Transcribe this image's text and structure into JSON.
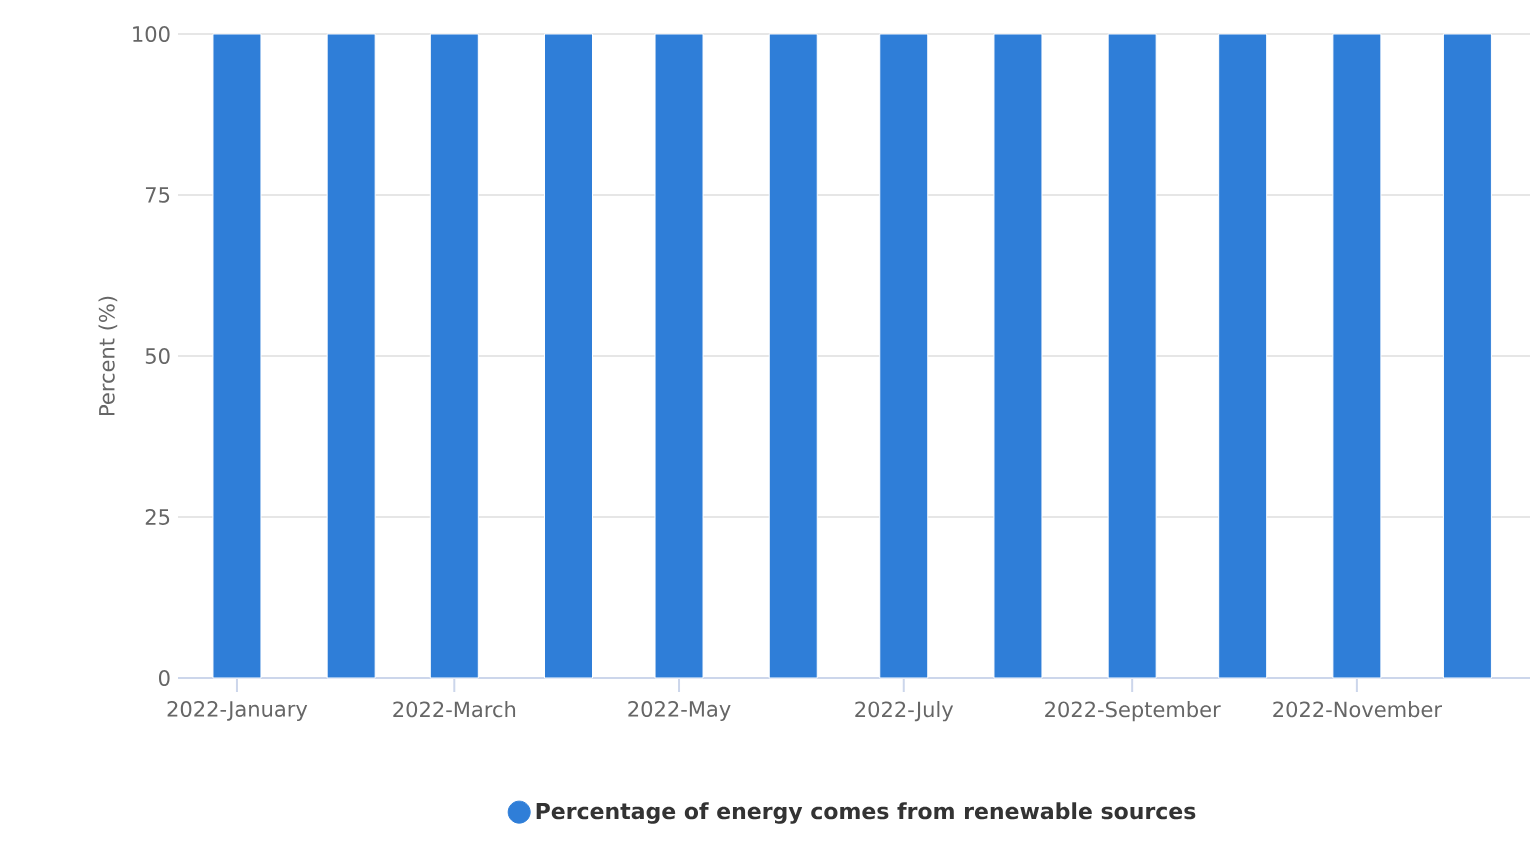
{
  "chart_data": {
    "type": "bar",
    "x": [
      "2022-01",
      "2022-02",
      "2022-03",
      "2022-04",
      "2022-05",
      "2022-06",
      "2022-07",
      "2022-08",
      "2022-09",
      "2022-10",
      "2022-11",
      "2022-12"
    ],
    "series": [
      {
        "name": "Percentage of energy comes from renewable sources",
        "color": "#2f7ed8",
        "values": [
          100,
          100,
          100,
          100,
          100,
          100,
          100,
          100,
          100,
          100,
          100,
          100
        ]
      }
    ],
    "ylabel": "Percent (%)",
    "ylim": [
      0,
      100
    ],
    "yticks": [
      0,
      25,
      50,
      75,
      100
    ],
    "xlim": [
      "2021-12-16",
      "2022-12-18"
    ],
    "xticks": [
      {
        "value": "2022-01",
        "label": "2022-January"
      },
      {
        "value": "2022-03",
        "label": "2022-March"
      },
      {
        "value": "2022-05",
        "label": "2022-May"
      },
      {
        "value": "2022-07",
        "label": "2022-July"
      },
      {
        "value": "2022-09",
        "label": "2022-September"
      },
      {
        "value": "2022-11",
        "label": "2022-November"
      }
    ],
    "grid": "y",
    "legend": "bottom"
  }
}
